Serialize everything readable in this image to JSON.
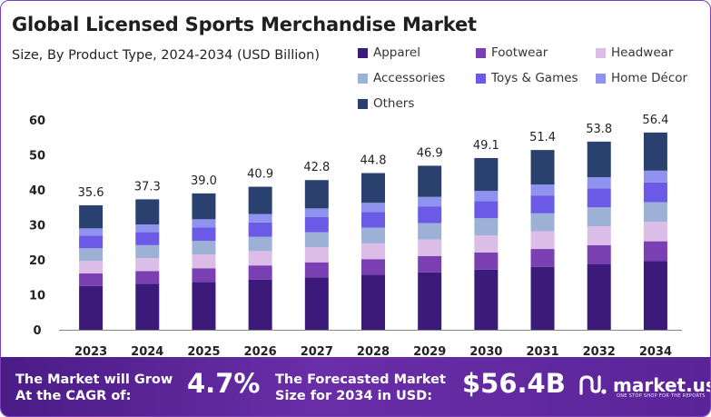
{
  "chart_data": {
    "type": "bar",
    "stacked": true,
    "title": "Global Licensed Sports Merchandise Market",
    "subtitle": "Size, By Product Type, 2024-2034 (USD Billion)",
    "categories": [
      "2023",
      "2024",
      "2025",
      "2026",
      "2027",
      "2028",
      "2029",
      "2030",
      "2031",
      "2032",
      "2034"
    ],
    "totals": [
      "35.6",
      "37.3",
      "39.0",
      "40.9",
      "42.8",
      "44.8",
      "46.9",
      "49.1",
      "51.4",
      "53.8",
      "56.4"
    ],
    "ylim": [
      0,
      60
    ],
    "yticks": [
      "0",
      "10",
      "20",
      "30",
      "40",
      "50",
      "60"
    ],
    "series": [
      {
        "name": "Apparel",
        "color": "#3b1a7a",
        "values": [
          12.5,
          13.1,
          13.7,
          14.3,
          15.0,
          15.7,
          16.4,
          17.2,
          18.0,
          18.8,
          19.7
        ]
      },
      {
        "name": "Footwear",
        "color": "#7a3fb2",
        "values": [
          3.6,
          3.7,
          3.9,
          4.1,
          4.3,
          4.5,
          4.7,
          4.9,
          5.1,
          5.4,
          5.6
        ]
      },
      {
        "name": "Headwear",
        "color": "#dcbde8",
        "values": [
          3.6,
          3.7,
          3.9,
          4.1,
          4.3,
          4.5,
          4.7,
          4.9,
          5.1,
          5.4,
          5.6
        ]
      },
      {
        "name": "Accessories",
        "color": "#9db1d6",
        "values": [
          3.6,
          3.7,
          3.9,
          4.1,
          4.3,
          4.5,
          4.7,
          4.9,
          5.1,
          5.4,
          5.6
        ]
      },
      {
        "name": "Toys & Games",
        "color": "#6a5ae6",
        "values": [
          3.6,
          3.7,
          3.9,
          4.1,
          4.3,
          4.5,
          4.7,
          4.9,
          5.1,
          5.4,
          5.6
        ]
      },
      {
        "name": "Home Décor",
        "color": "#8f93ef",
        "values": [
          2.1,
          2.2,
          2.3,
          2.4,
          2.5,
          2.6,
          2.8,
          2.9,
          3.1,
          3.2,
          3.4
        ]
      },
      {
        "name": "Others",
        "color": "#2a4170",
        "values": [
          6.6,
          7.2,
          7.4,
          7.8,
          8.1,
          8.5,
          8.9,
          9.4,
          9.9,
          10.2,
          10.9
        ]
      }
    ]
  },
  "banner": {
    "cagr_label_line1": "The Market will Grow",
    "cagr_label_line2": "At the CAGR of:",
    "cagr_value": "4.7%",
    "forecast_label_line1": "The Forecasted Market",
    "forecast_label_line2": "Size for 2034 in USD:",
    "forecast_value": "$56.4B",
    "brand": "market.us",
    "brand_tagline": "ONE STOP SHOP FOR THE REPORTS"
  }
}
